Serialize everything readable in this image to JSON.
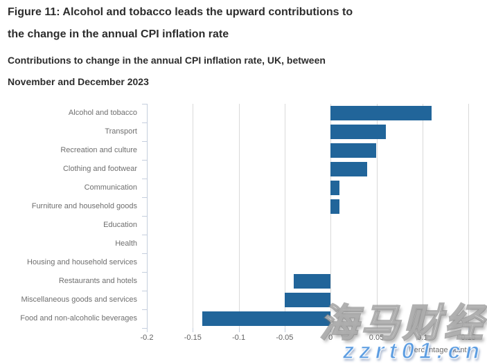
{
  "header": {
    "title": "Figure 11: Alcohol and tobacco leads the upward contributions to the change in the annual CPI inflation rate",
    "title_lines": [
      "Figure 11: Alcohol and tobacco leads the upward contributions to",
      "the change in the annual CPI inflation rate"
    ],
    "subtitle": "Contributions to change in the annual CPI inflation rate, UK, between November and December 2023",
    "subtitle_lines": [
      "Contributions to change in the annual CPI inflation rate, UK, between",
      "November and December 2023"
    ]
  },
  "chart_data": {
    "type": "bar",
    "orientation": "horizontal",
    "categories": [
      "Alcohol and tobacco",
      "Transport",
      "Recreation and culture",
      "Clothing and footwear",
      "Communication",
      "Furniture and household goods",
      "Education",
      "Health",
      "Housing and household services",
      "Restaurants and hotels",
      "Miscellaneous goods and services",
      "Food and non-alcoholic beverages"
    ],
    "values": [
      0.11,
      0.06,
      0.05,
      0.04,
      0.01,
      0.01,
      0.0,
      0.0,
      0.0,
      -0.04,
      -0.05,
      -0.14
    ],
    "title": "Contributions to change in the annual CPI inflation rate, UK, between November and December 2023",
    "xlabel": "Percentage points",
    "ylabel": "",
    "xlim": [
      -0.2,
      0.1575
    ],
    "xticks": [
      -0.2,
      -0.15,
      -0.1,
      -0.05,
      0,
      0.05,
      0.1,
      0.15
    ],
    "xtick_labels": [
      "-0.2",
      "-0.15",
      "-0.1",
      "-0.05",
      "0",
      "0.05",
      "0.1",
      "0.15"
    ],
    "grid": true,
    "legend": false,
    "bar_color": "#21659A",
    "grid_color": "#d9d9d9",
    "axis_color": "#c4cedd",
    "label_color": "#6e6e6e"
  },
  "watermark": {
    "text_cn": "海马财经",
    "text_url": "zzrt01.cn",
    "url_color": "#5b9ce1"
  }
}
